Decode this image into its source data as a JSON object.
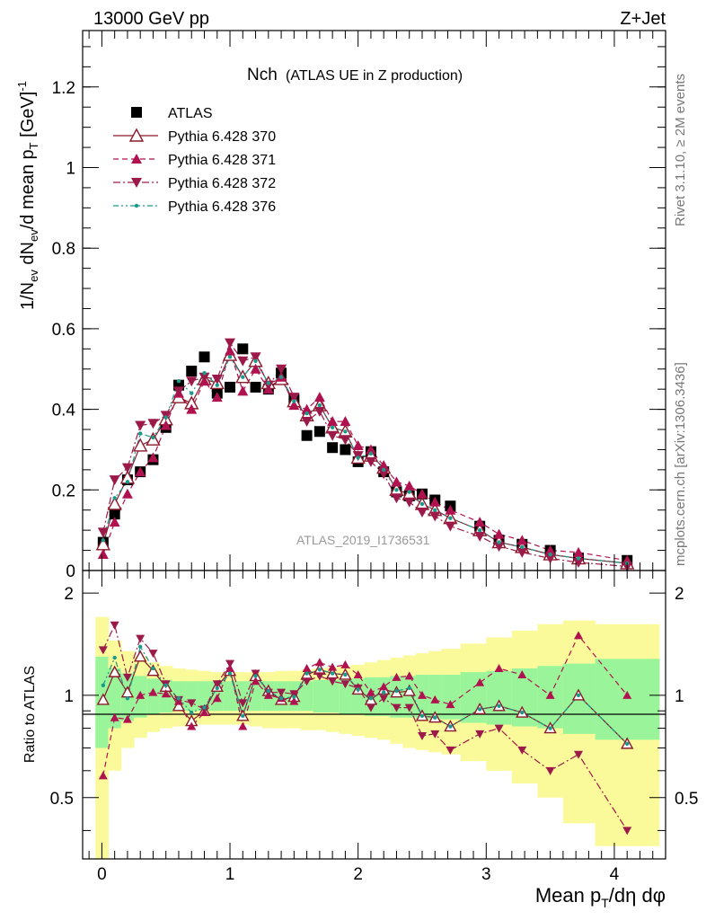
{
  "header": {
    "energy": "13000 GeV pp",
    "process": "Z+Jet"
  },
  "side_text": {
    "rivet": "Rivet 3.1.10, ≥ 2M events",
    "mcplots": "mcplots.cern.ch [arXiv:1306.3436]"
  },
  "watermark": "ATLAS_2019_I1736531",
  "colors": {
    "atlas": "#000000",
    "p370": "#8b1a2b",
    "p371": "#b0124f",
    "p372": "#9c1a4a",
    "p376": "#1a9a8a",
    "band_inner": "#9af59a",
    "band_outer": "#fafa9a"
  },
  "chart_data": [
    {
      "type": "scatter",
      "title": "Nch",
      "subtitle": "(ATLAS UE in Z production)",
      "ylabel": "1/N_ev dN_ev/d mean p_T [GeV]^-1",
      "xlim": [
        -0.15,
        4.4
      ],
      "ylim": [
        0,
        1.34
      ],
      "yticks": [
        "0",
        "0.2",
        "0.4",
        "0.6",
        "0.8",
        "1",
        "1.2"
      ],
      "x": [
        0.01,
        0.1,
        0.2,
        0.3,
        0.4,
        0.5,
        0.6,
        0.7,
        0.8,
        0.9,
        1.0,
        1.1,
        1.2,
        1.3,
        1.4,
        1.5,
        1.6,
        1.7,
        1.8,
        1.9,
        2.0,
        2.1,
        2.2,
        2.3,
        2.4,
        2.5,
        2.6,
        2.72,
        2.95,
        3.1,
        3.28,
        3.5,
        3.72,
        4.1
      ],
      "series": [
        {
          "name": "ATLAS",
          "marker": "square",
          "values": [
            0.07,
            0.14,
            0.225,
            0.245,
            0.275,
            0.355,
            0.46,
            0.495,
            0.53,
            0.44,
            0.455,
            0.55,
            0.455,
            0.45,
            0.49,
            0.425,
            0.335,
            0.345,
            0.305,
            0.3,
            0.27,
            0.295,
            0.245,
            0.195,
            0.185,
            0.19,
            0.175,
            0.16,
            0.11,
            0.075,
            0.065,
            0.05,
            0.03,
            0.025
          ]
        },
        {
          "name": "Pythia 6.428 370",
          "marker": "triangle-up-open",
          "values": [
            0.065,
            0.165,
            0.23,
            0.31,
            0.325,
            0.375,
            0.43,
            0.415,
            0.475,
            0.465,
            0.535,
            0.48,
            0.52,
            0.465,
            0.475,
            0.42,
            0.385,
            0.41,
            0.355,
            0.345,
            0.28,
            0.285,
            0.255,
            0.2,
            0.19,
            0.165,
            0.15,
            0.13,
            0.1,
            0.07,
            0.058,
            0.04,
            0.03,
            0.018
          ]
        },
        {
          "name": "Pythia 6.428 371",
          "marker": "triangle-up",
          "values": [
            0.04,
            0.12,
            0.19,
            0.245,
            0.28,
            0.36,
            0.44,
            0.4,
            0.47,
            0.43,
            0.545,
            0.445,
            0.5,
            0.45,
            0.48,
            0.41,
            0.4,
            0.43,
            0.37,
            0.37,
            0.31,
            0.3,
            0.26,
            0.22,
            0.21,
            0.19,
            0.17,
            0.15,
            0.12,
            0.09,
            0.075,
            0.05,
            0.045,
            0.025
          ]
        },
        {
          "name": "Pythia 6.428 372",
          "marker": "triangle-down",
          "values": [
            0.095,
            0.225,
            0.255,
            0.36,
            0.365,
            0.385,
            0.445,
            0.47,
            0.48,
            0.475,
            0.565,
            0.52,
            0.53,
            0.46,
            0.5,
            0.43,
            0.37,
            0.395,
            0.335,
            0.325,
            0.285,
            0.27,
            0.24,
            0.18,
            0.17,
            0.145,
            0.135,
            0.11,
            0.085,
            0.06,
            0.045,
            0.03,
            0.02,
            0.01
          ]
        },
        {
          "name": "Pythia 6.428 376",
          "marker": "dot",
          "values": [
            0.075,
            0.18,
            0.22,
            0.34,
            0.33,
            0.38,
            0.47,
            0.44,
            0.49,
            0.46,
            0.53,
            0.48,
            0.52,
            0.465,
            0.48,
            0.42,
            0.39,
            0.41,
            0.355,
            0.345,
            0.28,
            0.29,
            0.25,
            0.2,
            0.195,
            0.165,
            0.15,
            0.13,
            0.1,
            0.07,
            0.058,
            0.04,
            0.03,
            0.018
          ]
        }
      ]
    },
    {
      "type": "scatter",
      "ylabel": "Ratio to ATLAS",
      "xlabel": "Mean p_T/dη dφ",
      "xlim": [
        -0.15,
        4.4
      ],
      "ylim": [
        0.33,
        2.33
      ],
      "log_y": true,
      "yticks": [
        "0.5",
        "1",
        "2"
      ],
      "xticks": [
        "0",
        "1",
        "2",
        "3",
        "4"
      ],
      "x": [
        0.01,
        0.1,
        0.2,
        0.3,
        0.4,
        0.5,
        0.6,
        0.7,
        0.8,
        0.9,
        1.0,
        1.1,
        1.2,
        1.3,
        1.4,
        1.5,
        1.6,
        1.7,
        1.8,
        1.9,
        2.0,
        2.1,
        2.2,
        2.3,
        2.4,
        2.5,
        2.6,
        2.72,
        2.95,
        3.1,
        3.28,
        3.5,
        3.72,
        4.1
      ],
      "bands": {
        "bin_edges": [
          -0.05,
          0.05,
          0.15,
          0.25,
          0.35,
          0.45,
          0.55,
          0.65,
          0.75,
          0.85,
          0.95,
          1.05,
          1.15,
          1.25,
          1.35,
          1.45,
          1.55,
          1.65,
          1.75,
          1.85,
          1.95,
          2.05,
          2.15,
          2.25,
          2.35,
          2.45,
          2.55,
          2.65,
          2.8,
          3.0,
          3.2,
          3.4,
          3.6,
          3.85,
          4.35
        ],
        "inner_lo": [
          0.7,
          0.8,
          0.84,
          0.86,
          0.88,
          0.89,
          0.9,
          0.9,
          0.9,
          0.9,
          0.9,
          0.9,
          0.9,
          0.9,
          0.9,
          0.9,
          0.9,
          0.89,
          0.89,
          0.88,
          0.88,
          0.87,
          0.87,
          0.86,
          0.86,
          0.85,
          0.85,
          0.85,
          0.83,
          0.82,
          0.81,
          0.8,
          0.77,
          0.74,
          0.72
        ],
        "inner_hi": [
          1.3,
          1.2,
          1.16,
          1.14,
          1.12,
          1.11,
          1.1,
          1.1,
          1.1,
          1.1,
          1.1,
          1.1,
          1.1,
          1.1,
          1.1,
          1.1,
          1.1,
          1.11,
          1.11,
          1.12,
          1.12,
          1.13,
          1.13,
          1.14,
          1.14,
          1.15,
          1.15,
          1.15,
          1.17,
          1.18,
          1.2,
          1.22,
          1.24,
          1.28,
          1.3
        ],
        "outer_lo": [
          0.33,
          0.6,
          0.7,
          0.75,
          0.78,
          0.8,
          0.81,
          0.82,
          0.82,
          0.82,
          0.82,
          0.82,
          0.81,
          0.8,
          0.8,
          0.8,
          0.79,
          0.79,
          0.78,
          0.77,
          0.76,
          0.75,
          0.74,
          0.72,
          0.7,
          0.69,
          0.68,
          0.67,
          0.64,
          0.6,
          0.55,
          0.5,
          0.42,
          0.36,
          0.45
        ],
        "outer_hi": [
          1.7,
          1.45,
          1.35,
          1.3,
          1.25,
          1.22,
          1.2,
          1.19,
          1.18,
          1.17,
          1.17,
          1.17,
          1.17,
          1.17,
          1.18,
          1.18,
          1.19,
          1.2,
          1.21,
          1.22,
          1.23,
          1.25,
          1.27,
          1.29,
          1.31,
          1.33,
          1.35,
          1.37,
          1.42,
          1.48,
          1.55,
          1.62,
          1.66,
          1.62,
          1.62
        ]
      },
      "series": [
        {
          "name": "Pythia 6.428 370",
          "values": [
            0.97,
            1.17,
            1.02,
            1.3,
            1.18,
            1.06,
            0.93,
            0.84,
            0.9,
            1.06,
            1.18,
            0.87,
            1.14,
            1.03,
            0.97,
            0.99,
            1.15,
            1.19,
            1.16,
            1.15,
            1.04,
            0.97,
            1.04,
            1.02,
            1.03,
            0.87,
            0.86,
            0.81,
            0.91,
            0.93,
            0.89,
            0.8,
            1.0,
            0.72
          ]
        },
        {
          "name": "Pythia 6.428 371",
          "values": [
            0.58,
            0.86,
            0.85,
            1.0,
            1.02,
            1.01,
            0.96,
            0.81,
            0.89,
            0.98,
            1.2,
            0.81,
            1.1,
            1.0,
            0.98,
            0.96,
            1.2,
            1.25,
            1.21,
            1.23,
            1.15,
            1.02,
            1.06,
            1.13,
            1.14,
            1.0,
            0.97,
            0.94,
            1.09,
            1.2,
            1.15,
            1.0,
            1.5,
            1.0
          ]
        },
        {
          "name": "Pythia 6.428 372",
          "values": [
            1.36,
            1.61,
            1.13,
            1.47,
            1.33,
            1.08,
            0.97,
            0.95,
            0.91,
            1.08,
            1.24,
            0.95,
            1.16,
            1.02,
            1.02,
            1.01,
            1.1,
            1.14,
            1.1,
            1.08,
            1.05,
            0.92,
            0.98,
            0.92,
            0.92,
            0.76,
            0.77,
            0.69,
            0.77,
            0.8,
            0.69,
            0.6,
            0.67,
            0.4
          ]
        },
        {
          "name": "Pythia 6.428 376",
          "values": [
            1.07,
            1.29,
            0.98,
            1.39,
            1.2,
            1.07,
            0.98,
            0.89,
            0.92,
            1.05,
            1.16,
            0.87,
            1.14,
            1.03,
            0.98,
            0.99,
            1.16,
            1.19,
            1.16,
            1.15,
            1.04,
            0.98,
            1.02,
            1.03,
            1.05,
            0.87,
            0.86,
            0.81,
            0.91,
            0.93,
            0.89,
            0.8,
            1.0,
            0.72
          ]
        }
      ]
    }
  ]
}
